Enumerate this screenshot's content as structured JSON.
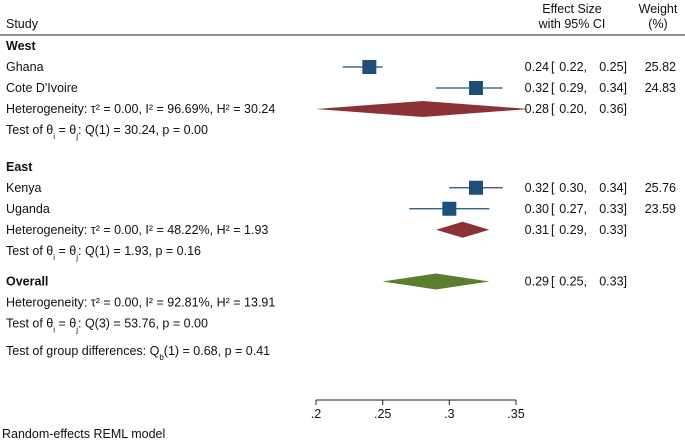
{
  "chart_data": {
    "type": "forest",
    "header": {
      "study": "Study",
      "effect_line1": "Effect Size",
      "effect_line2": "with 95% CI",
      "weight_line1": "Weight",
      "weight_line2": "(%)"
    },
    "x_axis": {
      "range": [
        0.2,
        0.35
      ],
      "ticks": [
        {
          "value": 0.2,
          "label": ".2"
        },
        {
          "value": 0.25,
          "label": ".25"
        },
        {
          "value": 0.3,
          "label": ".3"
        },
        {
          "value": 0.35,
          "label": ".35"
        }
      ]
    },
    "groups": [
      {
        "name": "West",
        "studies": [
          {
            "name": "Ghana",
            "es": 0.24,
            "lo": 0.22,
            "hi": 0.25,
            "es_text": "0.24",
            "lo_text": "0.22,",
            "hi_text": "0.25]",
            "weight": "25.82"
          },
          {
            "name": "Cote D'Ivoire",
            "es": 0.32,
            "lo": 0.29,
            "hi": 0.34,
            "es_text": "0.32",
            "lo_text": "0.29,",
            "hi_text": "0.34]",
            "weight": "24.83"
          }
        ],
        "subtotal": {
          "es": 0.28,
          "lo": 0.2,
          "hi": 0.36,
          "es_text": "0.28",
          "lo_text": "0.20,",
          "hi_text": "0.36]"
        },
        "heterogeneity": "Heterogeneity: τ² = 0.00, I² = 96.69%, H² = 30.24",
        "test": {
          "prefix": "Test of θ",
          "sub_i": "i",
          "mid": " = θ",
          "sub_j": "j",
          "suffix": ": Q(1) = 30.24, p = 0.00"
        }
      },
      {
        "name": "East",
        "studies": [
          {
            "name": "Kenya",
            "es": 0.32,
            "lo": 0.3,
            "hi": 0.34,
            "es_text": "0.32",
            "lo_text": "0.30,",
            "hi_text": "0.34]",
            "weight": "25.76"
          },
          {
            "name": "Uganda",
            "es": 0.3,
            "lo": 0.27,
            "hi": 0.33,
            "es_text": "0.30",
            "lo_text": "0.27,",
            "hi_text": "0.33]",
            "weight": "23.59"
          }
        ],
        "subtotal": {
          "es": 0.31,
          "lo": 0.29,
          "hi": 0.33,
          "es_text": "0.31",
          "lo_text": "0.29,",
          "hi_text": "0.33]"
        },
        "heterogeneity": "Heterogeneity: τ² = 0.00, I² = 48.22%, H² = 1.93",
        "test": {
          "prefix": "Test of θ",
          "sub_i": "i",
          "mid": " = θ",
          "sub_j": "j",
          "suffix": ": Q(1) = 1.93, p = 0.16"
        }
      }
    ],
    "overall": {
      "name": "Overall",
      "es": 0.29,
      "lo": 0.25,
      "hi": 0.33,
      "es_text": "0.29",
      "lo_text": "0.25,",
      "hi_text": "0.33]",
      "heterogeneity": "Heterogeneity: τ² = 0.00, I² = 92.81%, H² = 13.91",
      "test": {
        "prefix": "Test of θ",
        "sub_i": "i",
        "mid": " = θ",
        "sub_j": "j",
        "suffix": ": Q(3) = 53.76, p = 0.00"
      }
    },
    "group_diff": {
      "prefix": "Test of group differences: Q",
      "sub": "b",
      "suffix": "(1) = 0.68, p = 0.41"
    },
    "model_note": "Random-effects REML model",
    "colors": {
      "square": "#1f4e79",
      "subtotal_diamond": "#8b3236",
      "overall_diamond": "#5b7d2e",
      "line": "#1f4e79"
    }
  }
}
